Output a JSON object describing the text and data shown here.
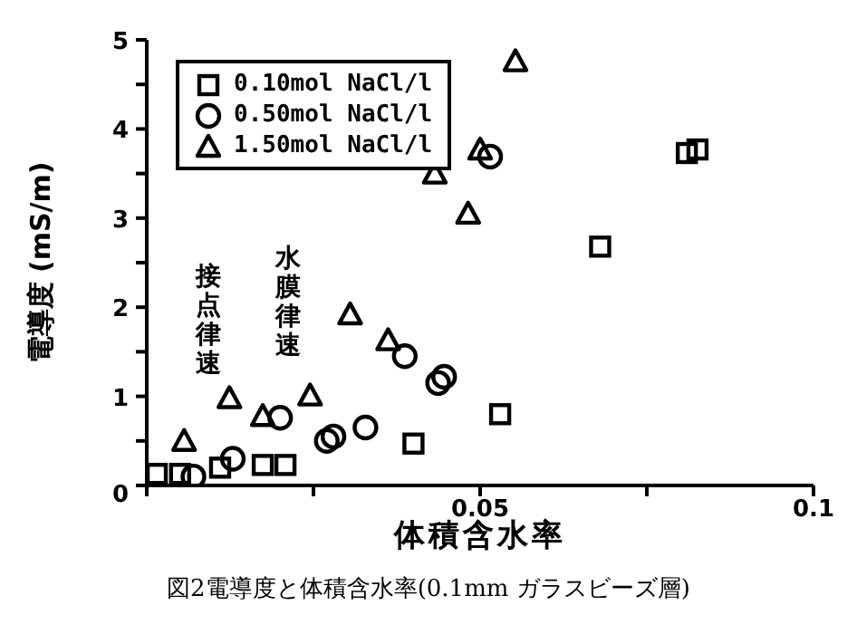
{
  "chart_data": {
    "type": "scatter",
    "title": "図2電導度と体積含水率(0.1mm ガラスビーズ層)",
    "xlabel": "体積含水率",
    "ylabel": "電導度 (mS/m)",
    "xlim": [
      0,
      0.1
    ],
    "ylim": [
      0,
      5
    ],
    "xticks": [
      {
        "value": 0,
        "label": null
      },
      {
        "value": 0.025,
        "label": null
      },
      0.05,
      {
        "value": 0.075,
        "label": null
      },
      0.1
    ],
    "yticks": [
      0,
      {
        "value": 0.5,
        "label": null
      },
      1,
      {
        "value": 1.5,
        "label": null
      },
      2,
      {
        "value": 2.5,
        "label": null
      },
      3,
      {
        "value": 3.5,
        "label": null
      },
      4,
      {
        "value": 4.5,
        "label": null
      },
      5
    ],
    "grid": false,
    "legend": "top left",
    "annotations": [
      "接点律速",
      "水膜律速"
    ],
    "series": [
      {
        "name": "0.10mol NaCl/l",
        "color": "#000000",
        "marker": "square",
        "x": [
          0.0015,
          0.005,
          0.011,
          0.0174,
          0.0208,
          0.04,
          0.053,
          0.068,
          0.081,
          0.0826
        ],
        "values": [
          0.13,
          0.13,
          0.2,
          0.23,
          0.23,
          0.47,
          0.8,
          2.68,
          3.73,
          3.77
        ]
      },
      {
        "name": "0.50mol NaCl/l",
        "color": "#000000",
        "marker": "circle",
        "x": [
          0.007,
          0.0129,
          0.02,
          0.027,
          0.028,
          0.0328,
          0.0387,
          0.0437,
          0.0446,
          0.0515
        ],
        "values": [
          0.1,
          0.3,
          0.76,
          0.5,
          0.55,
          0.65,
          1.45,
          1.15,
          1.22,
          3.69
        ]
      },
      {
        "name": "1.50mol NaCl/l",
        "color": "#000000",
        "marker": "triangle",
        "x": [
          0.0056,
          0.0124,
          0.0174,
          0.0245,
          0.0305,
          0.0362,
          0.0432,
          0.0482,
          0.05,
          0.0553
        ],
        "values": [
          0.5,
          0.98,
          0.78,
          1.01,
          1.92,
          1.63,
          3.5,
          3.05,
          3.77,
          4.76
        ]
      }
    ]
  }
}
